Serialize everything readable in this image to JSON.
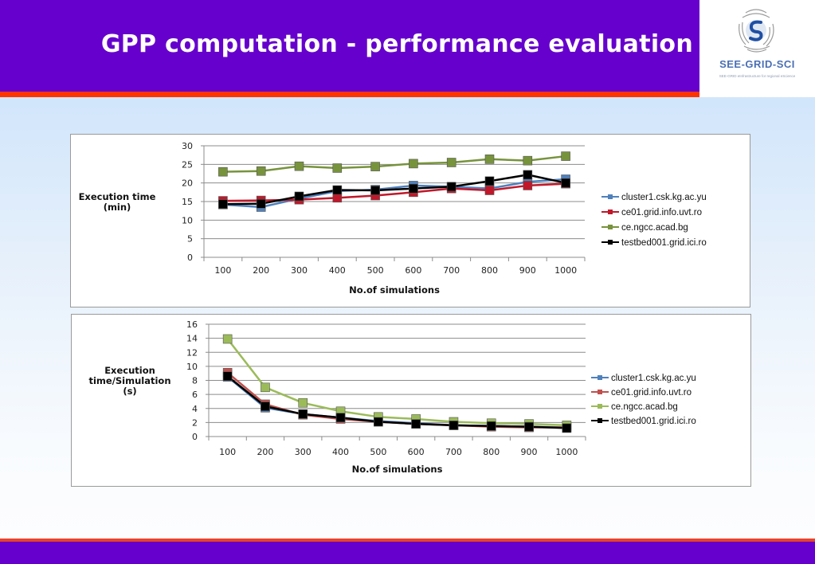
{
  "slide": {
    "title": "GPP computation - performance evaluation",
    "logo": {
      "name": "SEE-GRID-SCI",
      "tagline": "SEE-GRID eInfrastructure for regional eScience"
    },
    "colors": {
      "header": "#6600cc",
      "accent_stripe": "#ff3300"
    }
  },
  "chart_data": [
    {
      "type": "line",
      "title": "",
      "xlabel": "No.of simulations",
      "ylabel": "Execution time (min)",
      "ylabel_lines": [
        "Execution time",
        "(min)"
      ],
      "categories": [
        "100",
        "200",
        "300",
        "400",
        "500",
        "600",
        "700",
        "800",
        "900",
        "1000"
      ],
      "ylim": [
        0,
        30
      ],
      "yticks": [
        0,
        5,
        10,
        15,
        20,
        25,
        30
      ],
      "grid": true,
      "legend": "right",
      "series": [
        {
          "name": "cluster1.csk.kg.ac.yu",
          "color": "#4f81bd",
          "values": [
            14.2,
            13.5,
            15.8,
            17.8,
            18.2,
            19.3,
            19.0,
            18.5,
            20.3,
            21.0
          ]
        },
        {
          "name": "ce01.grid.info.uvt.ro",
          "color": "#c0182a",
          "values": [
            15.2,
            15.3,
            15.5,
            16.0,
            16.6,
            17.5,
            18.5,
            18.0,
            19.3,
            19.8
          ]
        },
        {
          "name": "ce.ngcc.acad.bg",
          "color": "#77933c",
          "values": [
            23.0,
            23.2,
            24.5,
            24.0,
            24.4,
            25.2,
            25.5,
            26.4,
            26.0,
            27.2
          ]
        },
        {
          "name": "testbed001.grid.ici.ro",
          "color": "#000000",
          "values": [
            14.3,
            14.4,
            16.4,
            18.1,
            18.0,
            18.5,
            19.0,
            20.5,
            22.2,
            20.0
          ]
        }
      ]
    },
    {
      "type": "line",
      "title": "",
      "xlabel": "No.of simulations",
      "ylabel": "Execution time/Simulation (s)",
      "ylabel_lines": [
        "Execution",
        "time/Simulation",
        "(s)"
      ],
      "categories": [
        "100",
        "200",
        "300",
        "400",
        "500",
        "600",
        "700",
        "800",
        "900",
        "1000"
      ],
      "ylim": [
        0,
        16
      ],
      "yticks": [
        0,
        2,
        4,
        6,
        8,
        10,
        12,
        14,
        16
      ],
      "grid": true,
      "legend": "right",
      "series": [
        {
          "name": "cluster1.csk.kg.ac.yu",
          "color": "#4f81bd",
          "values": [
            8.5,
            4.1,
            3.2,
            2.7,
            2.2,
            1.9,
            1.6,
            1.5,
            1.4,
            1.3
          ]
        },
        {
          "name": "ce01.grid.info.uvt.ro",
          "color": "#c0504d",
          "values": [
            9.1,
            4.6,
            3.1,
            2.5,
            2.1,
            1.8,
            1.6,
            1.4,
            1.3,
            1.3
          ]
        },
        {
          "name": "ce.ngcc.acad.bg",
          "color": "#9bbb59",
          "values": [
            13.9,
            7.0,
            4.8,
            3.6,
            2.8,
            2.5,
            2.1,
            1.9,
            1.8,
            1.6
          ]
        },
        {
          "name": "testbed001.grid.ici.ro",
          "color": "#000000",
          "values": [
            8.6,
            4.3,
            3.2,
            2.7,
            2.1,
            1.8,
            1.6,
            1.5,
            1.4,
            1.2
          ]
        }
      ]
    }
  ]
}
